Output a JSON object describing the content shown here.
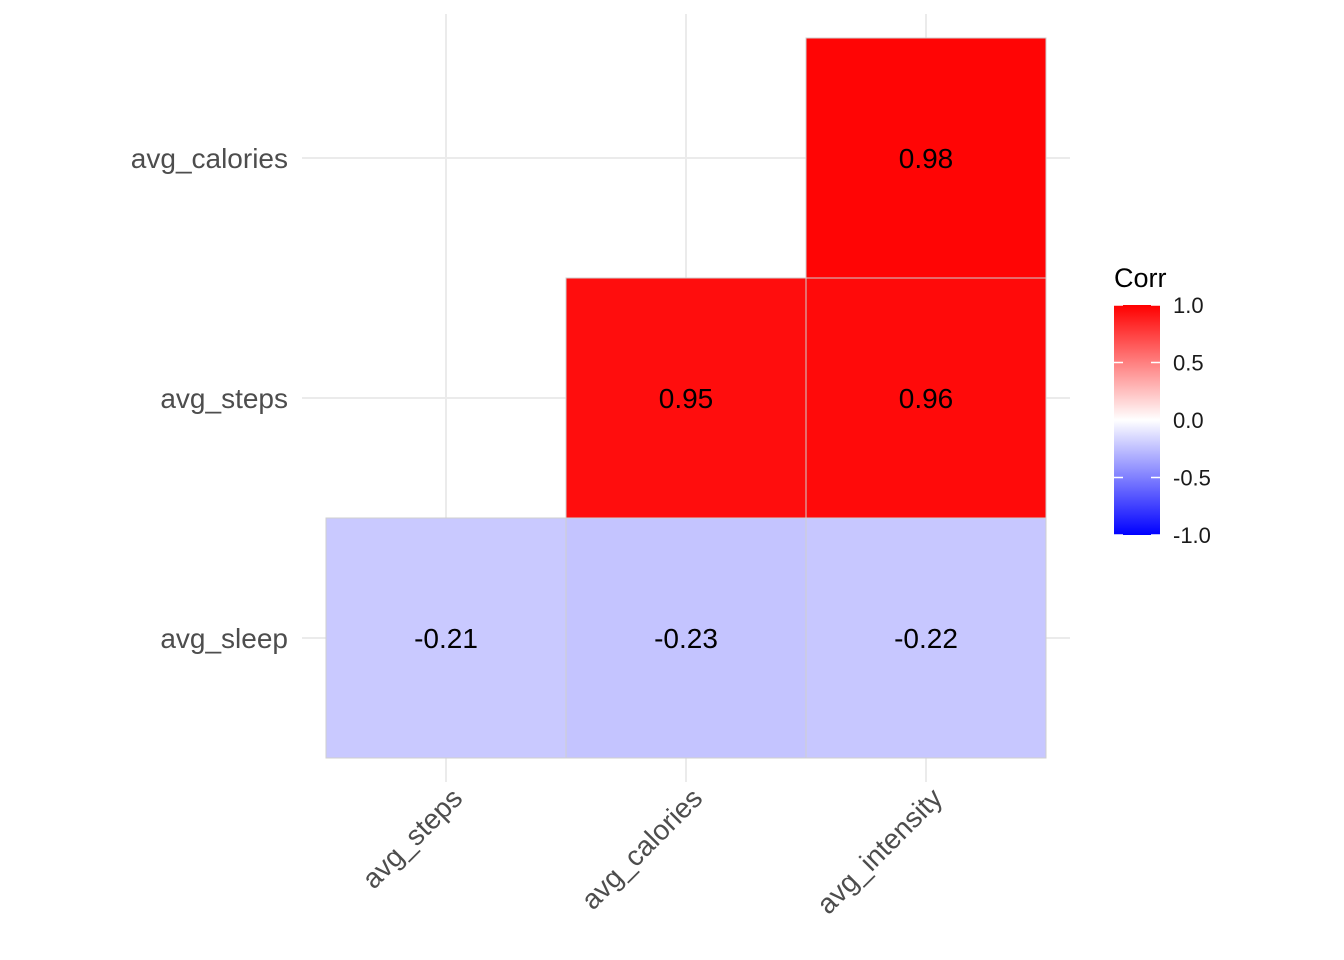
{
  "chart_data": {
    "type": "heatmap",
    "title": "",
    "xlabel": "",
    "ylabel": "",
    "x_categories": [
      "avg_steps",
      "avg_calories",
      "avg_intensity"
    ],
    "y_categories": [
      "avg_sleep",
      "avg_steps",
      "avg_calories"
    ],
    "cells": [
      {
        "x": "avg_steps",
        "y": "avg_sleep",
        "value": -0.21,
        "label": "-0.21"
      },
      {
        "x": "avg_calories",
        "y": "avg_sleep",
        "value": -0.23,
        "label": "-0.23"
      },
      {
        "x": "avg_intensity",
        "y": "avg_sleep",
        "value": -0.22,
        "label": "-0.22"
      },
      {
        "x": "avg_calories",
        "y": "avg_steps",
        "value": 0.95,
        "label": "0.95"
      },
      {
        "x": "avg_intensity",
        "y": "avg_steps",
        "value": 0.96,
        "label": "0.96"
      },
      {
        "x": "avg_intensity",
        "y": "avg_calories",
        "value": 0.98,
        "label": "0.98"
      }
    ],
    "color_scale": {
      "low": "#0000ff",
      "mid": "#ffffff",
      "high": "#ff0000",
      "limits": [
        -1,
        1
      ]
    },
    "legend": {
      "title": "Corr",
      "placement": "right",
      "ticks": [
        {
          "value": 1.0,
          "label": "1.0"
        },
        {
          "value": 0.5,
          "label": "0.5"
        },
        {
          "value": 0.0,
          "label": "0.0"
        },
        {
          "value": -0.5,
          "label": "-0.5"
        },
        {
          "value": -1.0,
          "label": "-1.0"
        }
      ]
    },
    "grid": true
  }
}
